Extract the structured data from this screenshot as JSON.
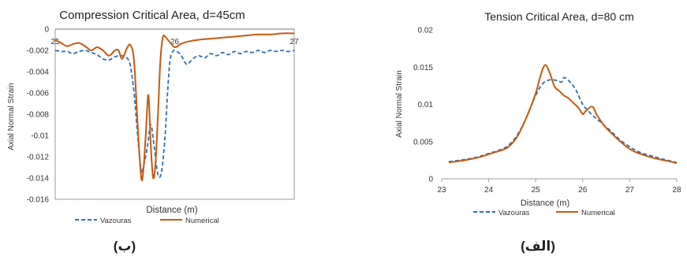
{
  "chart_data": [
    {
      "type": "line",
      "title": "Compression  Critical Area, d=45cm",
      "xlabel": "Distance (m)",
      "ylabel": "Axial Normal Strain",
      "xlim": [
        25,
        27
      ],
      "ylim": [
        -0.016,
        0
      ],
      "x_ticks": [
        "25",
        "26",
        "27"
      ],
      "y_ticks": [
        "0",
        "-0.002",
        "-0.004",
        "-0.006",
        "-0.008",
        "-0.01",
        "-0.012",
        "-0.014",
        "-0.016"
      ],
      "legend_position": "bottom",
      "panel_label": "(ب)",
      "series": [
        {
          "name": "Vazouras",
          "style": "dashed",
          "color": "#2E6DB4",
          "points": [
            [
              25.0,
              -0.002
            ],
            [
              25.05,
              -0.0021
            ],
            [
              25.1,
              -0.0021
            ],
            [
              25.15,
              -0.0023
            ],
            [
              25.2,
              -0.0021
            ],
            [
              25.25,
              -0.002
            ],
            [
              25.3,
              -0.0022
            ],
            [
              25.35,
              -0.0024
            ],
            [
              25.4,
              -0.0028
            ],
            [
              25.45,
              -0.0029
            ],
            [
              25.5,
              -0.0026
            ],
            [
              25.55,
              -0.0025
            ],
            [
              25.6,
              -0.0027
            ],
            [
              25.63,
              -0.0035
            ],
            [
              25.66,
              -0.006
            ],
            [
              25.69,
              -0.01
            ],
            [
              25.72,
              -0.0134
            ],
            [
              25.74,
              -0.0128
            ],
            [
              25.77,
              -0.0112
            ],
            [
              25.8,
              -0.009
            ],
            [
              25.83,
              -0.0112
            ],
            [
              25.86,
              -0.0137
            ],
            [
              25.89,
              -0.0134
            ],
            [
              25.92,
              -0.01
            ],
            [
              25.94,
              -0.006
            ],
            [
              25.96,
              -0.003
            ],
            [
              25.98,
              -0.0022
            ],
            [
              26.0,
              -0.002
            ],
            [
              26.05,
              -0.0024
            ],
            [
              26.1,
              -0.0033
            ],
            [
              26.15,
              -0.0028
            ],
            [
              26.2,
              -0.0025
            ],
            [
              26.25,
              -0.0027
            ],
            [
              26.3,
              -0.0023
            ],
            [
              26.35,
              -0.0025
            ],
            [
              26.4,
              -0.0022
            ],
            [
              26.45,
              -0.0024
            ],
            [
              26.5,
              -0.0021
            ],
            [
              26.55,
              -0.0023
            ],
            [
              26.6,
              -0.0021
            ],
            [
              26.65,
              -0.0022
            ],
            [
              26.7,
              -0.002
            ],
            [
              26.75,
              -0.0022
            ],
            [
              26.8,
              -0.002
            ],
            [
              26.85,
              -0.0021
            ],
            [
              26.9,
              -0.002
            ],
            [
              26.95,
              -0.0021
            ],
            [
              27.0,
              -0.002
            ]
          ]
        },
        {
          "name": "Numerical",
          "style": "solid",
          "color": "#C55A11",
          "points": [
            [
              25.0,
              -0.001
            ],
            [
              25.05,
              -0.0013
            ],
            [
              25.1,
              -0.0016
            ],
            [
              25.15,
              -0.0014
            ],
            [
              25.2,
              -0.0013
            ],
            [
              25.25,
              -0.0016
            ],
            [
              25.3,
              -0.002
            ],
            [
              25.35,
              -0.0017
            ],
            [
              25.4,
              -0.002
            ],
            [
              25.45,
              -0.0025
            ],
            [
              25.5,
              -0.002
            ],
            [
              25.53,
              -0.002
            ],
            [
              25.56,
              -0.0028
            ],
            [
              25.6,
              -0.0018
            ],
            [
              25.63,
              -0.0015
            ],
            [
              25.66,
              -0.003
            ],
            [
              25.69,
              -0.009
            ],
            [
              25.72,
              -0.014
            ],
            [
              25.74,
              -0.013
            ],
            [
              25.76,
              -0.0095
            ],
            [
              25.78,
              -0.0062
            ],
            [
              25.8,
              -0.011
            ],
            [
              25.82,
              -0.014
            ],
            [
              25.84,
              -0.0125
            ],
            [
              25.86,
              -0.008
            ],
            [
              25.88,
              -0.003
            ],
            [
              25.9,
              -0.0008
            ],
            [
              25.92,
              -0.0007
            ],
            [
              25.95,
              -0.0011
            ],
            [
              26.0,
              -0.0017
            ],
            [
              26.05,
              -0.0014
            ],
            [
              26.1,
              -0.0012
            ],
            [
              26.2,
              -0.001
            ],
            [
              26.3,
              -0.0009
            ],
            [
              26.4,
              -0.0008
            ],
            [
              26.5,
              -0.0007
            ],
            [
              26.6,
              -0.0006
            ],
            [
              26.7,
              -0.0005
            ],
            [
              26.8,
              -0.0005
            ],
            [
              26.9,
              -0.0004
            ],
            [
              27.0,
              -0.0004
            ]
          ]
        }
      ]
    },
    {
      "type": "line",
      "title": "Tension Critical Area, d=80 cm",
      "xlabel": "Distance (m)",
      "ylabel": "Axial Normal Strain",
      "xlim": [
        23,
        28
      ],
      "ylim": [
        0,
        0.02
      ],
      "x_ticks": [
        "23",
        "24",
        "25",
        "26",
        "27",
        "28"
      ],
      "y_ticks": [
        "0",
        "0.005",
        "0.01",
        "0.015",
        "0.02"
      ],
      "legend_position": "bottom",
      "panel_label": "(الف)",
      "series": [
        {
          "name": "Vazouras",
          "style": "dashed",
          "color": "#2E6DB4",
          "points": [
            [
              23.15,
              0.0023
            ],
            [
              23.5,
              0.0026
            ],
            [
              23.8,
              0.003
            ],
            [
              24.0,
              0.0034
            ],
            [
              24.2,
              0.0038
            ],
            [
              24.4,
              0.0044
            ],
            [
              24.6,
              0.0058
            ],
            [
              24.8,
              0.0082
            ],
            [
              25.0,
              0.0112
            ],
            [
              25.15,
              0.0128
            ],
            [
              25.3,
              0.0133
            ],
            [
              25.45,
              0.0132
            ],
            [
              25.55,
              0.013
            ],
            [
              25.6,
              0.0136
            ],
            [
              25.7,
              0.0132
            ],
            [
              25.85,
              0.012
            ],
            [
              26.0,
              0.01
            ],
            [
              26.2,
              0.0086
            ],
            [
              26.4,
              0.0075
            ],
            [
              26.6,
              0.0064
            ],
            [
              26.8,
              0.0052
            ],
            [
              27.0,
              0.0043
            ],
            [
              27.2,
              0.0036
            ],
            [
              27.5,
              0.003
            ],
            [
              27.8,
              0.0025
            ],
            [
              28.0,
              0.0022
            ]
          ]
        },
        {
          "name": "Numerical",
          "style": "solid",
          "color": "#C55A11",
          "points": [
            [
              23.15,
              0.0022
            ],
            [
              23.5,
              0.0025
            ],
            [
              23.8,
              0.0029
            ],
            [
              24.0,
              0.0033
            ],
            [
              24.2,
              0.0037
            ],
            [
              24.4,
              0.0042
            ],
            [
              24.6,
              0.0056
            ],
            [
              24.8,
              0.0082
            ],
            [
              25.0,
              0.0115
            ],
            [
              25.1,
              0.0138
            ],
            [
              25.2,
              0.0153
            ],
            [
              25.3,
              0.0142
            ],
            [
              25.4,
              0.0124
            ],
            [
              25.5,
              0.0118
            ],
            [
              25.6,
              0.0112
            ],
            [
              25.7,
              0.0108
            ],
            [
              25.8,
              0.0102
            ],
            [
              25.9,
              0.0096
            ],
            [
              26.0,
              0.0087
            ],
            [
              26.05,
              0.009
            ],
            [
              26.2,
              0.0097
            ],
            [
              26.3,
              0.0086
            ],
            [
              26.45,
              0.0072
            ],
            [
              26.6,
              0.0062
            ],
            [
              26.8,
              0.005
            ],
            [
              27.0,
              0.004
            ],
            [
              27.2,
              0.0034
            ],
            [
              27.5,
              0.0028
            ],
            [
              27.8,
              0.0024
            ],
            [
              28.0,
              0.0021
            ]
          ]
        }
      ]
    }
  ]
}
